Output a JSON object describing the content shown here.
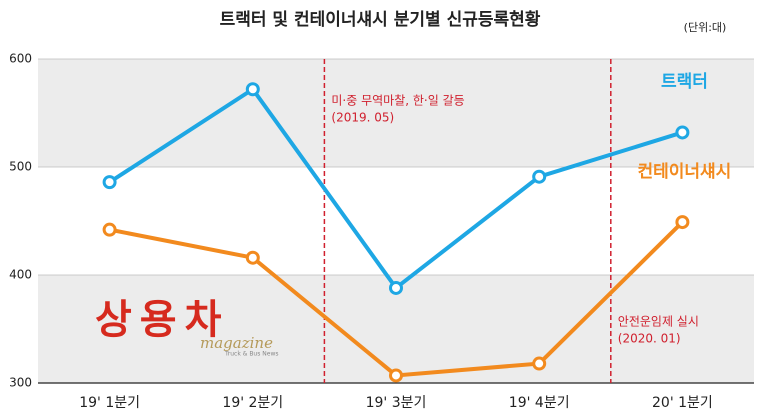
{
  "chart_data": {
    "type": "line",
    "title": "트랙터 및 컨테이너섀시 분기별 신규등록현황",
    "unit_note": "(단위:대)",
    "categories": [
      "19' 1분기",
      "19' 2분기",
      "19' 3분기",
      "19' 4분기",
      "20' 1분기"
    ],
    "series": [
      {
        "name": "트랙터",
        "color": "#1ea7e4",
        "values": [
          486,
          572,
          388,
          491,
          532
        ]
      },
      {
        "name": "컨테이너섀시",
        "color": "#f28a1e",
        "values": [
          442,
          416,
          307,
          318,
          449
        ]
      }
    ],
    "ylim": [
      300,
      600
    ],
    "yticks": [
      300,
      400,
      500,
      600
    ],
    "grid": true,
    "annotations": [
      {
        "lines": [
          "미·중 무역마찰, 한·일 갈등",
          "(2019. 05)"
        ],
        "color": "#d0202e"
      },
      {
        "lines": [
          "안전운임제 실시",
          "(2020. 01)"
        ],
        "color": "#d0202e"
      }
    ],
    "logo": "상용차",
    "logo_sub": "magazine",
    "logo_tag": "Truck & Bus News"
  }
}
